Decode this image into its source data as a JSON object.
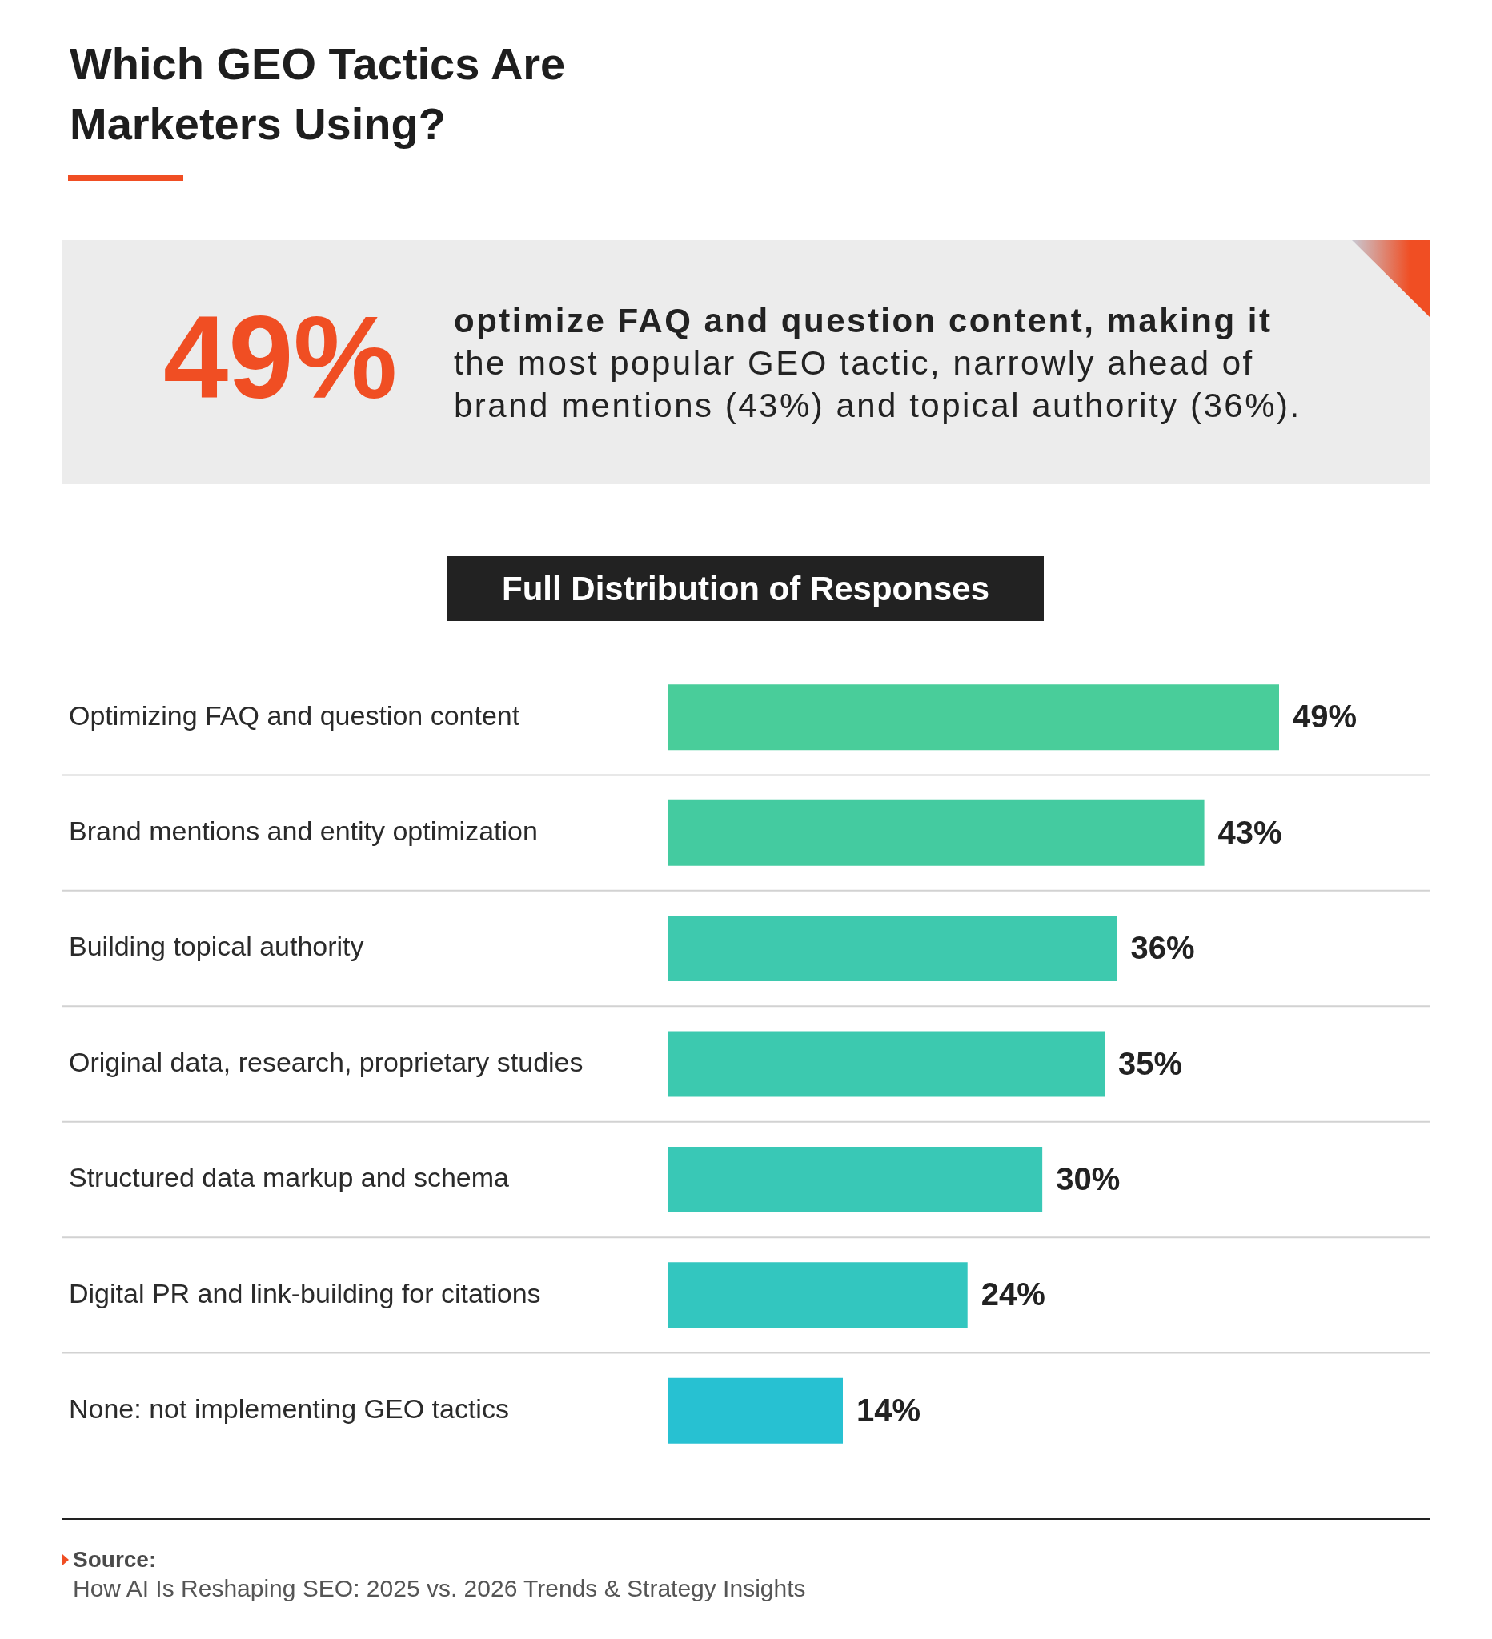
{
  "chart_data": {
    "type": "bar",
    "orientation": "horizontal",
    "title": "Which GEO Tactics Are Marketers Using?",
    "subtitle": "Full Distribution of Responses",
    "categories": [
      "Optimizing FAQ and question content",
      "Brand mentions and entity optimization",
      "Building topical authority",
      "Original data, research, proprietary studies",
      "Structured data markup and schema",
      "Digital PR and link-building for citations",
      "None: not implementing GEO tactics"
    ],
    "values": [
      49,
      43,
      36,
      35,
      30,
      24,
      14
    ],
    "colors": [
      "#49cd9a",
      "#44cba0",
      "#3ec9ae",
      "#3cc9af",
      "#39c8b6",
      "#33c6bf",
      "#27c1d2"
    ],
    "value_labels": [
      "49%",
      "43%",
      "36%",
      "35%",
      "30%",
      "24%",
      "14%"
    ],
    "grid": "y",
    "annotations": [
      "49%",
      "optimize FAQ and question content, making it the most popular GEO tactic, narrowly ahead of brand mentions (43%) and topical authority (36%).",
      "Source:",
      "How AI Is Reshaping SEO: 2025 vs. 2026 Trends & Strategy Insights"
    ]
  }
}
